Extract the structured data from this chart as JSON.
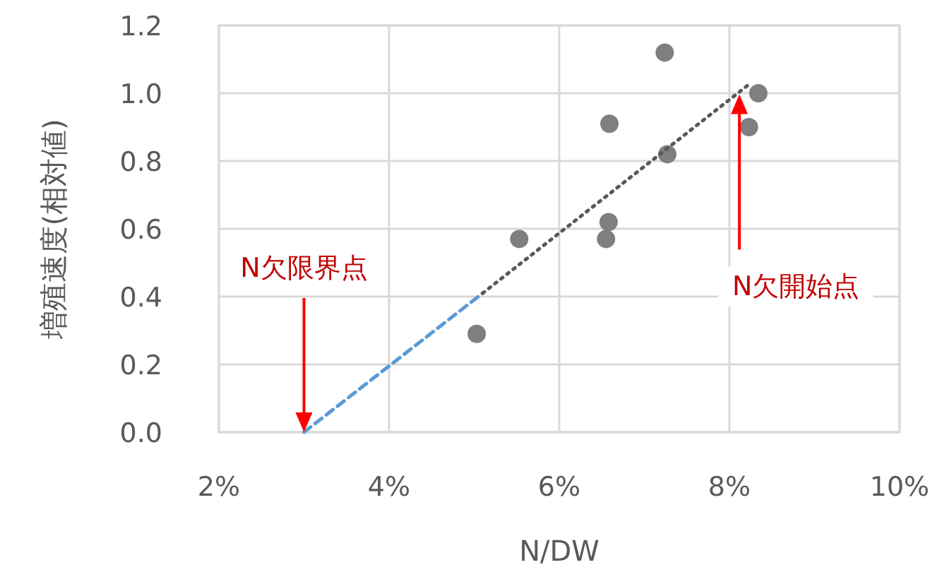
{
  "chart_data": {
    "type": "scatter",
    "xlabel": "N/DW",
    "ylabel": "増殖速度(相対値)",
    "xlim": [
      2,
      10
    ],
    "xticks": [
      {
        "value": 2,
        "label": "2%"
      },
      {
        "value": 4,
        "label": "4%"
      },
      {
        "value": 6,
        "label": "6%"
      },
      {
        "value": 8,
        "label": "8%"
      },
      {
        "value": 10,
        "label": "10%"
      }
    ],
    "ylim": [
      0,
      1.2
    ],
    "yticks": [
      {
        "value": 0,
        "label": "0.0"
      },
      {
        "value": 0.2,
        "label": "0.2"
      },
      {
        "value": 0.4,
        "label": "0.4"
      },
      {
        "value": 0.6,
        "label": "0.6"
      },
      {
        "value": 0.8,
        "label": "0.8"
      },
      {
        "value": 1,
        "label": "1.0"
      },
      {
        "value": 1.2,
        "label": "1.2"
      }
    ],
    "grid": true,
    "series": [
      {
        "color": "#7f7f7f",
        "marker": "circle",
        "x": [
          7.24,
          8.34,
          8.23,
          6.59,
          7.27,
          6.58,
          6.55,
          5.53,
          5.03
        ],
        "values": [
          1.12,
          1.0,
          0.9,
          0.91,
          0.82,
          0.62,
          0.57,
          0.57,
          0.29
        ]
      },
      {
        "type": "line",
        "color": "#5b9bd5",
        "line_style": "dashed",
        "marker": "none",
        "x": [
          3.0,
          5.1
        ],
        "values": [
          0.0,
          0.41
        ]
      },
      {
        "type": "line",
        "color": "#595959",
        "line_style": "dotted",
        "marker": "none",
        "x": [
          5.1,
          8.25
        ],
        "values": [
          0.41,
          1.03
        ]
      }
    ],
    "annotations": [
      "N欠限界点",
      "N欠開始点"
    ]
  }
}
